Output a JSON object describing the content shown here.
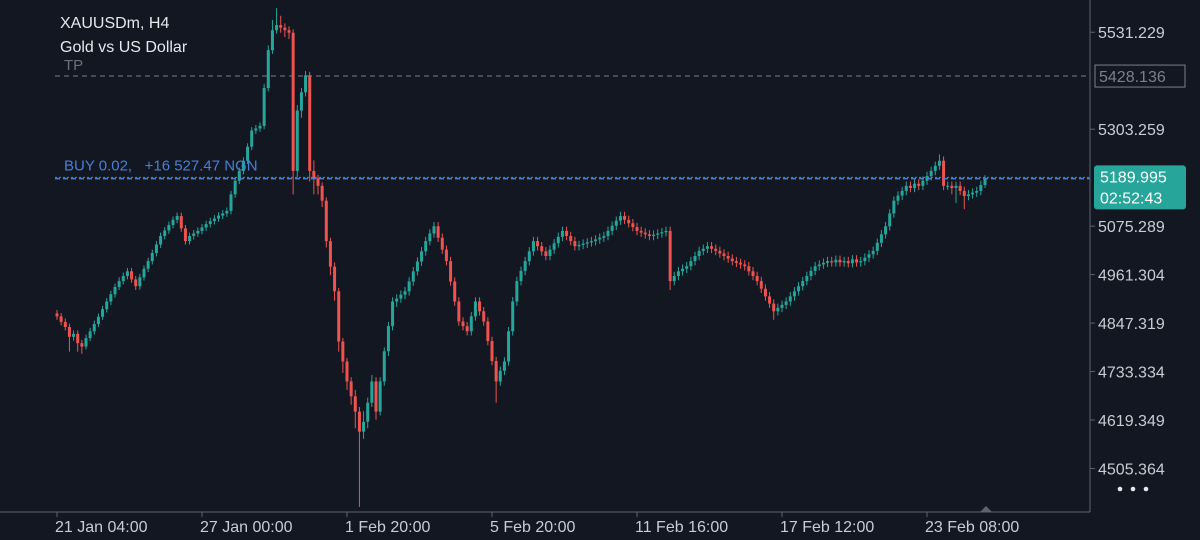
{
  "chart_data": {
    "type": "candlestick",
    "title": "XAUUSDm, H4",
    "subtitle": "Gold vs US Dollar",
    "categories": [
      "21 Jan 04:00",
      null,
      null,
      null,
      null,
      null,
      null,
      null,
      null,
      null,
      null,
      null,
      null,
      null,
      null,
      null,
      null,
      null,
      null,
      null,
      null,
      null,
      null,
      null,
      null,
      null,
      null,
      null,
      null,
      null,
      null,
      null,
      null,
      null,
      null,
      "27 Jan 00:00",
      null,
      null,
      null,
      null,
      null,
      null,
      null,
      null,
      null,
      null,
      null,
      null,
      null,
      null,
      null,
      null,
      null,
      null,
      null,
      null,
      null,
      null,
      null,
      null,
      null,
      null,
      null,
      null,
      null,
      null,
      null,
      null,
      null,
      null,
      "1 Feb 20:00",
      null,
      null,
      null,
      null,
      null,
      null,
      null,
      null,
      null,
      null,
      null,
      null,
      null,
      null,
      null,
      null,
      null,
      null,
      null,
      null,
      null,
      null,
      null,
      null,
      null,
      null,
      null,
      null,
      null,
      null,
      null,
      null,
      null,
      null,
      "5 Feb 20:00",
      null,
      null,
      null,
      null,
      null,
      null,
      null,
      null,
      null,
      null,
      null,
      null,
      null,
      null,
      null,
      null,
      null,
      null,
      null,
      null,
      null,
      null,
      null,
      null,
      null,
      null,
      null,
      null,
      null,
      null,
      null,
      null,
      null,
      null,
      "11 Feb 16:00",
      null,
      null,
      null,
      null,
      null,
      null,
      null,
      null,
      null,
      null,
      null,
      null,
      null,
      null,
      null,
      null,
      null,
      null,
      null,
      null,
      null,
      null,
      null,
      null,
      null,
      null,
      null,
      null,
      null,
      null,
      null,
      null,
      null,
      null,
      "17 Feb 12:00",
      null,
      null,
      null,
      null,
      null,
      null,
      null,
      null,
      null,
      null,
      null,
      null,
      null,
      null,
      null,
      null,
      null,
      null,
      null,
      null,
      null,
      null,
      null,
      null,
      null,
      null,
      null,
      null,
      null,
      null,
      null,
      null,
      null,
      null,
      "23 Feb 08:00",
      null,
      null,
      null,
      null,
      null,
      null,
      null,
      null,
      null,
      null,
      null,
      null,
      null,
      null
    ],
    "open": [
      4870,
      4863,
      4850,
      4838,
      4815,
      4822,
      4800,
      4792,
      4812,
      4828,
      4845,
      4862,
      4880,
      4898,
      4915,
      4932,
      4946,
      4958,
      4969,
      4950,
      4934,
      4955,
      4975,
      4993,
      5012,
      5032,
      5052,
      5065,
      5078,
      5090,
      5099,
      5070,
      5040,
      5052,
      5058,
      5064,
      5072,
      5080,
      5087,
      5093,
      5100,
      5105,
      5111,
      5150,
      5182,
      5205,
      5229,
      5262,
      5300,
      5305,
      5311,
      5400,
      5489,
      5536,
      5548,
      5542,
      5536,
      5530,
      5205,
      5347,
      5390,
      5430,
      5205,
      5188,
      5170,
      5135,
      5040,
      4980,
      4922,
      4804,
      4757,
      4710,
      4675,
      4639,
      4592,
      4615,
      4660,
      4710,
      4639,
      4710,
      4781,
      4840,
      4898,
      4905,
      4914,
      4922,
      4945,
      4969,
      4992,
      5016,
      5040,
      5058,
      5075,
      5048,
      5020,
      4993,
      4945,
      4898,
      4851,
      4840,
      4828,
      4863,
      4898,
      4875,
      4851,
      4805,
      4758,
      4710,
      4735,
      4757,
      4828,
      4898,
      4946,
      4970,
      4993,
      5016,
      5040,
      5028,
      5016,
      5005,
      5020,
      5035,
      5050,
      5064,
      5052,
      5040,
      5028,
      5031,
      5034,
      5037,
      5040,
      5044,
      5048,
      5052,
      5064,
      5076,
      5088,
      5099,
      5090,
      5082,
      5073,
      5064,
      5060,
      5056,
      5052,
      5055,
      5058,
      5061,
      5064,
      4946,
      4958,
      4969,
      4975,
      4981,
      4993,
      5005,
      5017,
      5022,
      5028,
      5022,
      5017,
      5011,
      5005,
      4999,
      4993,
      4989,
      4985,
      4981,
      4969,
      4958,
      4946,
      4928,
      4910,
      4893,
      4875,
      4883,
      4890,
      4898,
      4910,
      4922,
      4934,
      4946,
      4958,
      4970,
      4981,
      4985,
      4989,
      4993,
      4990,
      4996,
      4990,
      4993,
      4988,
      4997,
      4990,
      4993,
      5001,
      5009,
      5017,
      5036,
      5056,
      5075,
      5105,
      5135,
      5147,
      5158,
      5170,
      5165,
      5175,
      5170,
      5182,
      5193,
      5205,
      5217,
      5229,
      5170,
      5170,
      5165,
      5170,
      5158,
      5146,
      5150,
      5154,
      5158,
      5172
    ],
    "high": [
      4878,
      4871,
      4858,
      4846,
      4830,
      4830,
      4808,
      4820,
      4836,
      4853,
      4870,
      4888,
      4906,
      4923,
      4940,
      4955,
      4966,
      4977,
      4977,
      4958,
      4963,
      4983,
      5001,
      5020,
      5040,
      5060,
      5073,
      5086,
      5098,
      5107,
      5107,
      5078,
      5060,
      5066,
      5072,
      5080,
      5088,
      5095,
      5101,
      5108,
      5113,
      5119,
      5158,
      5190,
      5213,
      5237,
      5270,
      5308,
      5313,
      5319,
      5410,
      5500,
      5560,
      5588,
      5570,
      5552,
      5545,
      5538,
      5360,
      5400,
      5440,
      5438,
      5230,
      5196,
      5178,
      5143,
      5048,
      4990,
      4930,
      4812,
      4765,
      4720,
      4690,
      4650,
      4640,
      4672,
      4725,
      4720,
      4720,
      4790,
      4850,
      4908,
      4915,
      4924,
      4932,
      4955,
      4979,
      5002,
      5026,
      5050,
      5068,
      5085,
      5085,
      5058,
      5030,
      5003,
      4955,
      4908,
      4861,
      4850,
      4873,
      4908,
      4908,
      4885,
      4861,
      4815,
      4768,
      4745,
      4767,
      4838,
      4908,
      4956,
      4980,
      5003,
      5026,
      5050,
      5050,
      5038,
      5026,
      5030,
      5045,
      5060,
      5074,
      5074,
      5062,
      5050,
      5041,
      5044,
      5047,
      5050,
      5054,
      5058,
      5062,
      5074,
      5086,
      5098,
      5109,
      5109,
      5100,
      5092,
      5083,
      5074,
      5070,
      5066,
      5065,
      5068,
      5071,
      5074,
      5074,
      4968,
      4979,
      4985,
      4991,
      5003,
      5015,
      5027,
      5032,
      5038,
      5038,
      5032,
      5027,
      5021,
      5015,
      5009,
      5003,
      4999,
      4995,
      4991,
      4979,
      4968,
      4956,
      4938,
      4920,
      4903,
      4893,
      4900,
      4908,
      4920,
      4932,
      4944,
      4956,
      4968,
      4980,
      4991,
      4995,
      4999,
      5003,
      5003,
      5006,
      5006,
      5003,
      5003,
      5007,
      5007,
      5003,
      5011,
      5019,
      5027,
      5046,
      5066,
      5085,
      5115,
      5145,
      5157,
      5168,
      5180,
      5180,
      5185,
      5185,
      5192,
      5203,
      5215,
      5227,
      5244,
      5239,
      5180,
      5180,
      5180,
      5180,
      5168,
      5160,
      5164,
      5168,
      5182,
      5195
    ],
    "low": [
      4855,
      4842,
      4830,
      4780,
      4806,
      4780,
      4775,
      4785,
      4805,
      4820,
      4838,
      4855,
      4872,
      4890,
      4907,
      4925,
      4938,
      4950,
      4942,
      4925,
      4926,
      4947,
      4967,
      4985,
      5004,
      5024,
      5044,
      5057,
      5070,
      5082,
      5062,
      5032,
      5032,
      5044,
      5050,
      5056,
      5064,
      5072,
      5079,
      5085,
      5092,
      5097,
      5103,
      5142,
      5174,
      5197,
      5221,
      5254,
      5292,
      5297,
      5303,
      5392,
      5480,
      5528,
      5530,
      5520,
      5515,
      5150,
      5190,
      5330,
      5380,
      5180,
      5150,
      5150,
      5120,
      5025,
      4960,
      4900,
      4780,
      4730,
      4690,
      4655,
      4600,
      4415,
      4575,
      4600,
      4650,
      4620,
      4630,
      4700,
      4770,
      4830,
      4885,
      4895,
      4903,
      4912,
      4935,
      4959,
      4982,
      5006,
      5030,
      5048,
      5038,
      5010,
      4983,
      4935,
      4888,
      4841,
      4830,
      4818,
      4818,
      4853,
      4865,
      4841,
      4795,
      4748,
      4660,
      4700,
      4725,
      4747,
      4818,
      4888,
      4936,
      4960,
      4983,
      5006,
      5018,
      5006,
      4995,
      4995,
      5010,
      5025,
      5040,
      5042,
      5030,
      5018,
      5018,
      5021,
      5024,
      5027,
      5030,
      5034,
      5038,
      5042,
      5054,
      5066,
      5078,
      5080,
      5072,
      5063,
      5054,
      5050,
      5046,
      5042,
      5042,
      5045,
      5048,
      5051,
      4925,
      4936,
      4948,
      4959,
      4965,
      4971,
      4983,
      4995,
      5007,
      5012,
      5012,
      5007,
      5001,
      4995,
      4989,
      4983,
      4979,
      4975,
      4971,
      4959,
      4948,
      4936,
      4918,
      4900,
      4883,
      4855,
      4865,
      4873,
      4880,
      4888,
      4900,
      4912,
      4924,
      4936,
      4948,
      4960,
      4971,
      4975,
      4979,
      4980,
      4980,
      4980,
      4980,
      4978,
      4978,
      4980,
      4980,
      4983,
      4991,
      4999,
      5007,
      5026,
      5046,
      5065,
      5095,
      5125,
      5137,
      5148,
      5155,
      5155,
      5160,
      5160,
      5172,
      5183,
      5195,
      5207,
      5160,
      5160,
      5150,
      5130,
      5148,
      5115,
      5136,
      5140,
      5144,
      5148,
      5165
    ],
    "close": [
      4863,
      4850,
      4838,
      4815,
      4822,
      4800,
      4792,
      4812,
      4828,
      4845,
      4862,
      4880,
      4898,
      4915,
      4932,
      4946,
      4958,
      4969,
      4950,
      4934,
      4955,
      4975,
      4993,
      5012,
      5032,
      5052,
      5065,
      5078,
      5090,
      5099,
      5070,
      5040,
      5052,
      5058,
      5064,
      5072,
      5080,
      5087,
      5093,
      5100,
      5105,
      5111,
      5150,
      5182,
      5205,
      5229,
      5262,
      5300,
      5305,
      5311,
      5400,
      5489,
      5536,
      5548,
      5542,
      5536,
      5530,
      5205,
      5347,
      5390,
      5430,
      5205,
      5188,
      5170,
      5135,
      5040,
      4980,
      4922,
      4804,
      4757,
      4710,
      4675,
      4639,
      4592,
      4615,
      4660,
      4710,
      4639,
      4710,
      4781,
      4840,
      4898,
      4905,
      4914,
      4922,
      4945,
      4969,
      4992,
      5016,
      5040,
      5058,
      5075,
      5048,
      5020,
      4993,
      4945,
      4898,
      4851,
      4840,
      4828,
      4863,
      4898,
      4875,
      4851,
      4805,
      4758,
      4710,
      4735,
      4757,
      4828,
      4898,
      4946,
      4970,
      4993,
      5016,
      5040,
      5028,
      5016,
      5005,
      5020,
      5035,
      5050,
      5064,
      5052,
      5040,
      5028,
      5031,
      5034,
      5037,
      5040,
      5044,
      5048,
      5052,
      5064,
      5076,
      5088,
      5099,
      5090,
      5082,
      5073,
      5064,
      5060,
      5056,
      5052,
      5055,
      5058,
      5061,
      5064,
      4946,
      4958,
      4969,
      4975,
      4981,
      4993,
      5005,
      5017,
      5022,
      5028,
      5022,
      5017,
      5011,
      5005,
      4999,
      4993,
      4989,
      4985,
      4981,
      4969,
      4958,
      4946,
      4928,
      4910,
      4893,
      4875,
      4883,
      4890,
      4898,
      4910,
      4922,
      4934,
      4946,
      4958,
      4970,
      4981,
      4985,
      4989,
      4993,
      4990,
      4996,
      4990,
      4993,
      4988,
      4997,
      4990,
      4993,
      5001,
      5009,
      5017,
      5036,
      5056,
      5075,
      5105,
      5135,
      5147,
      5158,
      5170,
      5165,
      5175,
      5170,
      5182,
      5193,
      5205,
      5217,
      5229,
      5170,
      5170,
      5165,
      5170,
      5158,
      5146,
      5150,
      5154,
      5158,
      5172,
      5187
    ],
    "up_color": "#26a69a",
    "down_color": "#ef5350",
    "ylim": [
      4403,
      5607
    ],
    "yticks": [
      5531.229,
      5303.259,
      5075.289,
      4961.304,
      4847.319,
      4733.334,
      4619.349,
      4505.364
    ],
    "tp": {
      "label": "TP",
      "price": 5428.136
    },
    "position": {
      "label": "BUY 0.02,   +16 527.47 NGN",
      "price": 5187
    },
    "last_price": 5189.995,
    "countdown": "02:52:43"
  }
}
